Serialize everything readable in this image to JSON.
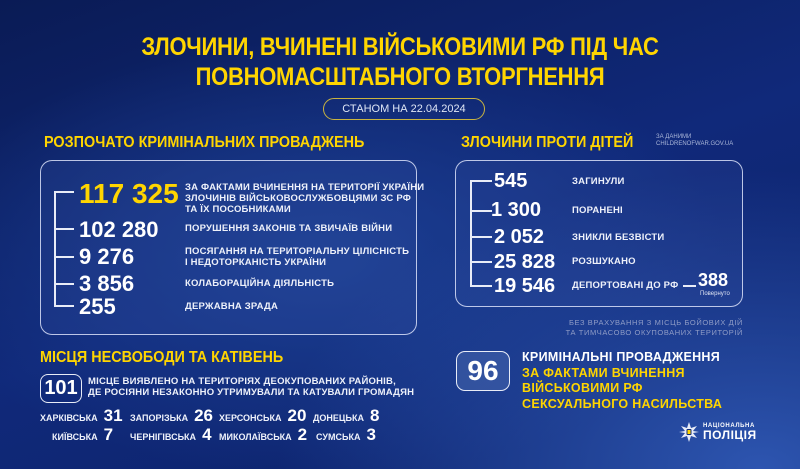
{
  "header": {
    "title_line1": "ЗЛОЧИНИ, ВЧИНЕНІ ВІЙСЬКОВИМИ РФ ПІД ЧАС",
    "title_line2": "ПОВНОМАСШТАБНОГО ВТОРГНЕННЯ",
    "date": "СТАНОМ НА 22.04.2024"
  },
  "proceedings": {
    "heading": "РОЗПОЧАТО КРИМІНАЛЬНИХ ПРОВАДЖЕНЬ",
    "items": [
      {
        "value": "117 325",
        "label1": "ЗА ФАКТАМИ ВЧИНЕННЯ НА ТЕРИТОРІЇ УКРАЇНИ",
        "label2": "ЗЛОЧИНІВ ВІЙСЬКОВОСЛУЖБОВЦЯМИ ЗС РФ",
        "label3": "ТА ЇХ ПОСОБНИКАМИ"
      },
      {
        "value": "102 280",
        "label1": "ПОРУШЕННЯ ЗАКОНІВ ТА ЗВИЧАЇВ ВІЙНИ"
      },
      {
        "value": "9 276",
        "label1": "ПОСЯГАННЯ НА ТЕРИТОРІАЛЬНУ ЦІЛІСНІСТЬ",
        "label2": "І НЕДОТОРКАНІСТЬ УКРАЇНИ"
      },
      {
        "value": "3 856",
        "label1": "КОЛАБОРАЦІЙНА ДІЯЛЬНІСТЬ"
      },
      {
        "value": "255",
        "label1": "ДЕРЖАВНА ЗРАДА"
      }
    ]
  },
  "children": {
    "heading": "ЗЛОЧИНИ ПРОТИ ДІТЕЙ",
    "source1": "ЗА ДАНИМИ",
    "source2": "CHILDRENOFWAR.GOV.UA",
    "items": [
      {
        "value": "545",
        "label": "ЗАГИНУЛИ"
      },
      {
        "value": "1 300",
        "label": "ПОРАНЕНІ"
      },
      {
        "value": "2 052",
        "label": "ЗНИКЛИ БЕЗВІСТИ"
      },
      {
        "value": "25 828",
        "label": "РОЗШУКАНО"
      },
      {
        "value": "19 546",
        "label": "ДЕПОРТОВАНІ ДО РФ"
      }
    ],
    "returned_value": "388",
    "returned_label": "Повернуто",
    "note1": "БЕЗ ВРАХУВАННЯ З МІСЦЬ БОЙОВИХ ДІЙ",
    "note2": "ТА ТИМЧАСОВО ОКУПОВАНИХ ТЕРИТОРІЙ"
  },
  "detention": {
    "heading": "МІСЦЯ НЕСВОБОДИ ТА КАТІВЕНЬ",
    "count": "101",
    "text1": "МІСЦЕ ВИЯВЛЕНО НА ТЕРИТОРІЯХ ДЕОКУПОВАНИХ РАЙОНІВ,",
    "text2": "ДЕ РОСІЯНИ НЕЗАКОННО УТРИМУВАЛИ ТА КАТУВАЛИ ГРОМАДЯН",
    "regions": [
      {
        "name": "ХАРКІВСЬКА",
        "value": "31"
      },
      {
        "name": "ЗАПОРІЗЬКА",
        "value": "26"
      },
      {
        "name": "ХЕРСОНСЬКА",
        "value": "20"
      },
      {
        "name": "ДОНЕЦЬКА",
        "value": "8"
      },
      {
        "name": "КИЇВСЬКА",
        "value": "7"
      },
      {
        "name": "ЧЕРНІГІВСЬКА",
        "value": "4"
      },
      {
        "name": "МИКОЛАЇВСЬКА",
        "value": "2"
      },
      {
        "name": "СУМСЬКА",
        "value": "3"
      }
    ]
  },
  "sexual": {
    "count": "96",
    "line1": "КРИМІНАЛЬНІ ПРОВАДЖЕННЯ",
    "line2": "ЗА ФАКТАМИ ВЧИНЕННЯ",
    "line3": "ВІЙСЬКОВИМИ РФ",
    "line4": "СЕКСУАЛЬНОГО НАСИЛЬСТВА"
  },
  "logo": {
    "line1": "НАЦІОНАЛЬНА",
    "line2": "ПОЛІЦІЯ"
  },
  "colors": {
    "accent": "#ffd500",
    "background": "#10297a"
  }
}
